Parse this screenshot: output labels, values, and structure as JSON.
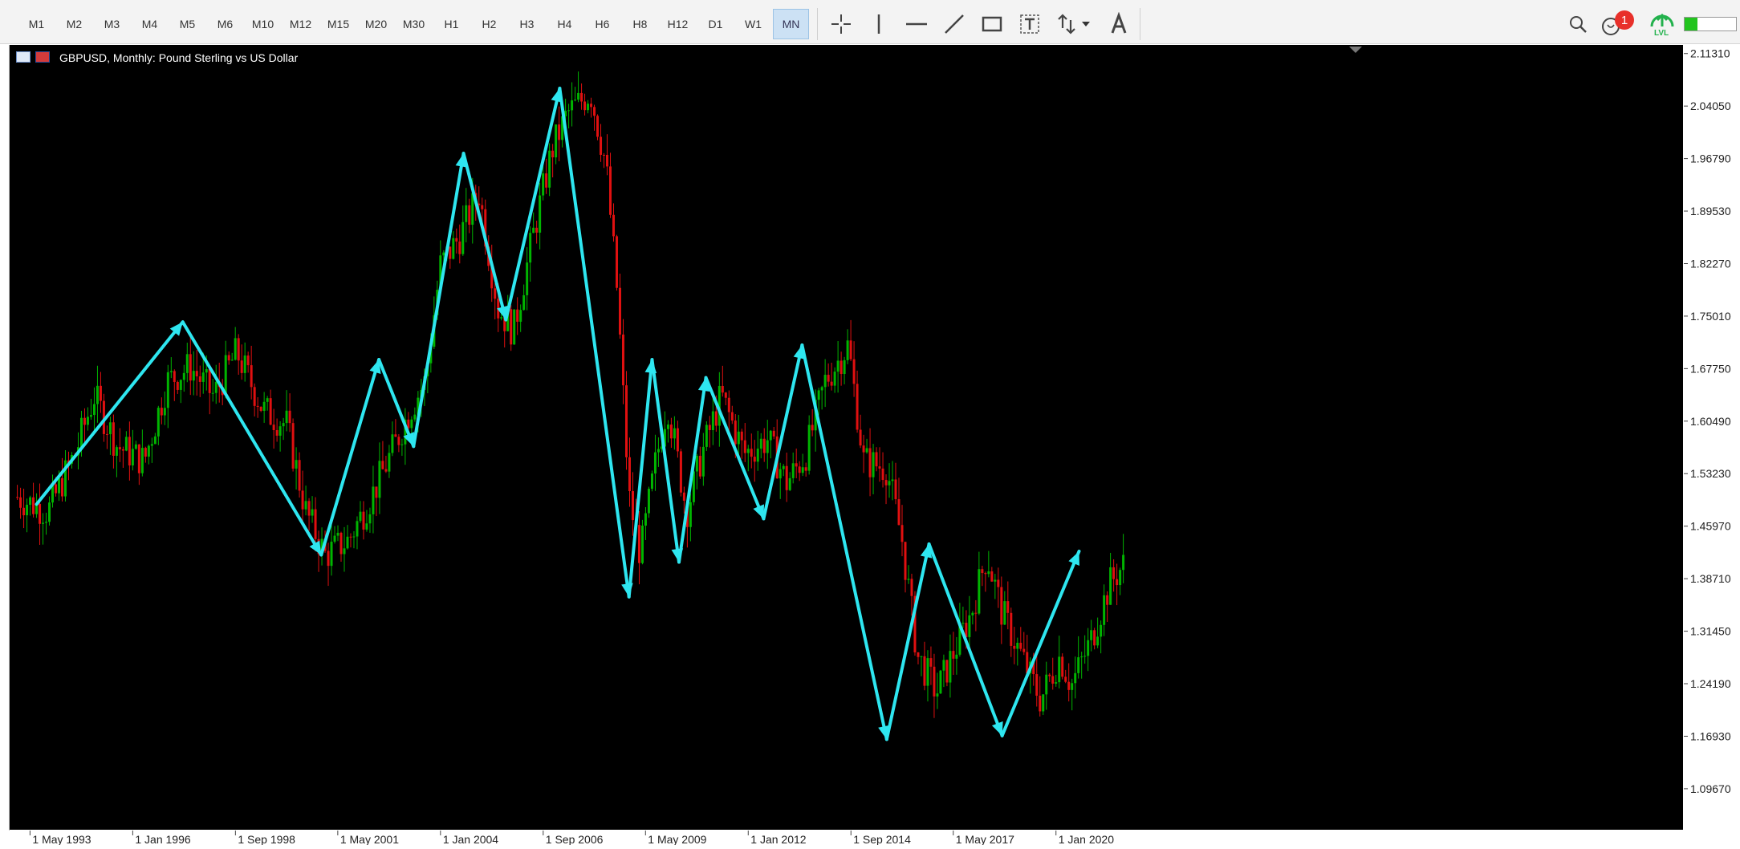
{
  "toolbar": {
    "timeframes": [
      "M1",
      "M2",
      "M3",
      "M4",
      "M5",
      "M6",
      "M10",
      "M12",
      "M15",
      "M20",
      "M30",
      "H1",
      "H2",
      "H3",
      "H4",
      "H6",
      "H8",
      "H12",
      "D1",
      "W1",
      "MN"
    ],
    "active_timeframe": "MN",
    "notification_count": "1",
    "lvl_label": "LVL",
    "colors": {
      "active_bg": "#cce1f4",
      "badge": "#e8302a",
      "lvl_green": "#22b14c"
    }
  },
  "chart_data": {
    "type": "candlestick",
    "title": "GBPUSD, Monthly:  Pound Sterling vs US Dollar",
    "background": "#000000",
    "bull_color": "#00b400",
    "bear_color": "#e01010",
    "annotation_color": "#2ee6f0",
    "y_ticks": [
      "2.11310",
      "2.04050",
      "1.96790",
      "1.89530",
      "1.82270",
      "1.75010",
      "1.67750",
      "1.60490",
      "1.53230",
      "1.45970",
      "1.38710",
      "1.31450",
      "1.24190",
      "1.16930",
      "1.09670"
    ],
    "ylim": [
      1.04,
      2.125
    ],
    "x_ticks": [
      {
        "label": "1 May 1993",
        "t": 1993.33
      },
      {
        "label": "1 Jan 1996",
        "t": 1996.0
      },
      {
        "label": "1 Sep 1998",
        "t": 1998.67
      },
      {
        "label": "1 May 2001",
        "t": 2001.33
      },
      {
        "label": "1 Jan 2004",
        "t": 2004.0
      },
      {
        "label": "1 Sep 2006",
        "t": 2006.67
      },
      {
        "label": "1 May 2009",
        "t": 2009.33
      },
      {
        "label": "1 Jan 2012",
        "t": 2012.0
      },
      {
        "label": "1 Sep 2014",
        "t": 2014.67
      },
      {
        "label": "1 May 2017",
        "t": 2017.33
      },
      {
        "label": "1 Jan 2020",
        "t": 2020.0
      }
    ],
    "xlim": [
      1992.8,
      2036.3
    ],
    "price_path": [
      [
        1993.0,
        1.5
      ],
      [
        1993.8,
        1.48
      ],
      [
        1994.5,
        1.56
      ],
      [
        1995.0,
        1.64
      ],
      [
        1995.6,
        1.57
      ],
      [
        1996.3,
        1.55
      ],
      [
        1996.9,
        1.66
      ],
      [
        1997.5,
        1.68
      ],
      [
        1998.1,
        1.64
      ],
      [
        1998.7,
        1.7
      ],
      [
        1999.4,
        1.62
      ],
      [
        2000.0,
        1.6
      ],
      [
        2000.5,
        1.48
      ],
      [
        2001.0,
        1.42
      ],
      [
        2001.6,
        1.44
      ],
      [
        2002.2,
        1.5
      ],
      [
        2002.8,
        1.57
      ],
      [
        2003.2,
        1.62
      ],
      [
        2003.6,
        1.66
      ],
      [
        2004.0,
        1.82
      ],
      [
        2004.5,
        1.86
      ],
      [
        2005.0,
        1.92
      ],
      [
        2005.5,
        1.76
      ],
      [
        2005.9,
        1.73
      ],
      [
        2006.4,
        1.86
      ],
      [
        2006.9,
        1.98
      ],
      [
        2007.3,
        2.03
      ],
      [
        2007.9,
        2.06
      ],
      [
        2008.3,
        1.96
      ],
      [
        2008.6,
        1.78
      ],
      [
        2008.9,
        1.5
      ],
      [
        2009.2,
        1.42
      ],
      [
        2009.6,
        1.55
      ],
      [
        2009.9,
        1.63
      ],
      [
        2010.4,
        1.48
      ],
      [
        2010.8,
        1.56
      ],
      [
        2011.3,
        1.64
      ],
      [
        2011.9,
        1.56
      ],
      [
        2012.5,
        1.58
      ],
      [
        2013.0,
        1.52
      ],
      [
        2013.5,
        1.56
      ],
      [
        2014.0,
        1.66
      ],
      [
        2014.6,
        1.71
      ],
      [
        2015.0,
        1.55
      ],
      [
        2015.6,
        1.54
      ],
      [
        2016.0,
        1.44
      ],
      [
        2016.4,
        1.28
      ],
      [
        2016.9,
        1.23
      ],
      [
        2017.3,
        1.28
      ],
      [
        2017.8,
        1.34
      ],
      [
        2018.2,
        1.42
      ],
      [
        2018.6,
        1.34
      ],
      [
        2019.1,
        1.28
      ],
      [
        2019.6,
        1.22
      ],
      [
        2020.1,
        1.28
      ],
      [
        2020.4,
        1.24
      ],
      [
        2020.9,
        1.3
      ],
      [
        2021.4,
        1.38
      ],
      [
        2021.8,
        1.41
      ]
    ],
    "zigzag": [
      [
        1993.5,
        1.49
      ],
      [
        1997.3,
        1.742
      ],
      [
        2000.9,
        1.42
      ],
      [
        2002.4,
        1.69
      ],
      [
        2003.3,
        1.57
      ],
      [
        2004.6,
        1.975
      ],
      [
        2005.7,
        1.745
      ],
      [
        2007.1,
        2.065
      ],
      [
        2008.9,
        1.362
      ],
      [
        2009.5,
        1.69
      ],
      [
        2010.2,
        1.41
      ],
      [
        2010.9,
        1.665
      ],
      [
        2012.4,
        1.47
      ],
      [
        2013.4,
        1.71
      ],
      [
        2015.6,
        1.165
      ],
      [
        2016.7,
        1.435
      ],
      [
        2018.6,
        1.17
      ],
      [
        2020.6,
        1.425
      ]
    ]
  }
}
